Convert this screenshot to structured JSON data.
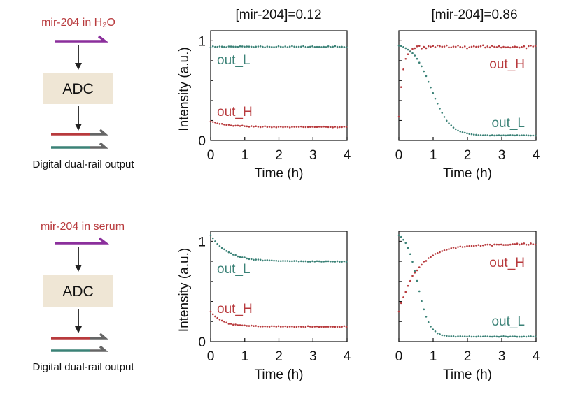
{
  "colors": {
    "out_H": "#b83a3d",
    "out_L": "#3b8277",
    "input_strand": "#8b2f9c",
    "adc_box": "#efe6d5",
    "output_tail": "#666666",
    "axis": "#111111"
  },
  "diagrams": [
    {
      "input_label": "mir-204 in H₂O",
      "box_label": "ADC",
      "caption": "Digital dual-rail output"
    },
    {
      "input_label": "mir-204 in serum",
      "box_label": "ADC",
      "caption": "Digital dual-rail output"
    }
  ],
  "chart_data": [
    {
      "type": "scatter",
      "title": "[mir-204]=0.12",
      "xlabel": "Time (h)",
      "ylabel": "Intensity (a.u.)",
      "xlim": [
        0,
        4
      ],
      "ylim": [
        0,
        1.1
      ],
      "xticks": [
        "0",
        "1",
        "2",
        "3",
        "4"
      ],
      "yticks": [
        {
          "value": 0,
          "label": "0"
        },
        {
          "value": 1,
          "label": "1"
        }
      ],
      "annotations": [
        {
          "text": "out_L",
          "series": "out_L"
        },
        {
          "text": "out_H",
          "series": "out_H"
        }
      ],
      "series": [
        {
          "name": "out_L",
          "color": "#3b8277",
          "curve": {
            "kind": "flat",
            "start": 0.94,
            "end": 0.94,
            "tau": 0.5,
            "noise": 0.007
          }
        },
        {
          "name": "out_H",
          "color": "#b83a3d",
          "curve": {
            "kind": "exp",
            "start": 0.19,
            "end": 0.135,
            "tau": 0.5,
            "noise": 0.006
          }
        }
      ]
    },
    {
      "type": "scatter",
      "title": "[mir-204]=0.86",
      "xlabel": "Time (h)",
      "ylabel": "",
      "xlim": [
        0,
        4
      ],
      "ylim": [
        0,
        1.1
      ],
      "xticks": [
        "0",
        "1",
        "2",
        "3",
        "4"
      ],
      "yticks": [],
      "annotations": [
        {
          "text": "out_H",
          "series": "out_H"
        },
        {
          "text": "out_L",
          "series": "out_L"
        }
      ],
      "series": [
        {
          "name": "out_H",
          "color": "#b83a3d",
          "curve": {
            "kind": "rise",
            "start": 0.25,
            "end": 0.94,
            "tau": 0.12,
            "noise": 0.018
          }
        },
        {
          "name": "out_L",
          "color": "#3b8277",
          "curve": {
            "kind": "sigmoid",
            "start": 0.98,
            "end": 0.05,
            "mid": 0.95,
            "width": 0.27,
            "noise": 0.004
          }
        }
      ]
    },
    {
      "type": "scatter",
      "title": "",
      "xlabel": "Time (h)",
      "ylabel": "Intensity (a.u.)",
      "xlim": [
        0,
        4
      ],
      "ylim": [
        0,
        1.1
      ],
      "xticks": [
        "0",
        "1",
        "2",
        "3",
        "4"
      ],
      "yticks": [
        {
          "value": 0,
          "label": "0"
        },
        {
          "value": 1,
          "label": "1"
        }
      ],
      "annotations": [
        {
          "text": "out_L",
          "series": "out_L"
        },
        {
          "text": "out_H",
          "series": "out_H"
        }
      ],
      "series": [
        {
          "name": "out_L",
          "color": "#3b8277",
          "curve": {
            "kind": "exp",
            "start": 1.06,
            "end": 0.8,
            "tau": 0.5,
            "noise": 0.006
          }
        },
        {
          "name": "out_H",
          "color": "#b83a3d",
          "curve": {
            "kind": "exp",
            "start": 0.3,
            "end": 0.15,
            "tau": 0.35,
            "noise": 0.006
          }
        }
      ]
    },
    {
      "type": "scatter",
      "title": "",
      "xlabel": "Time (h)",
      "ylabel": "",
      "xlim": [
        0,
        4
      ],
      "ylim": [
        0,
        1.1
      ],
      "xticks": [
        "0",
        "1",
        "2",
        "3",
        "4"
      ],
      "yticks": [],
      "annotations": [
        {
          "text": "out_H",
          "series": "out_H"
        },
        {
          "text": "out_L",
          "series": "out_L"
        }
      ],
      "series": [
        {
          "name": "out_H",
          "color": "#b83a3d",
          "curve": {
            "kind": "rise",
            "start": 0.3,
            "end": 0.97,
            "tau": 0.55,
            "noise": 0.012
          }
        },
        {
          "name": "out_L",
          "color": "#3b8277",
          "curve": {
            "kind": "sigmoid",
            "start": 1.1,
            "end": 0.05,
            "mid": 0.55,
            "width": 0.17,
            "noise": 0.004
          }
        }
      ]
    }
  ]
}
